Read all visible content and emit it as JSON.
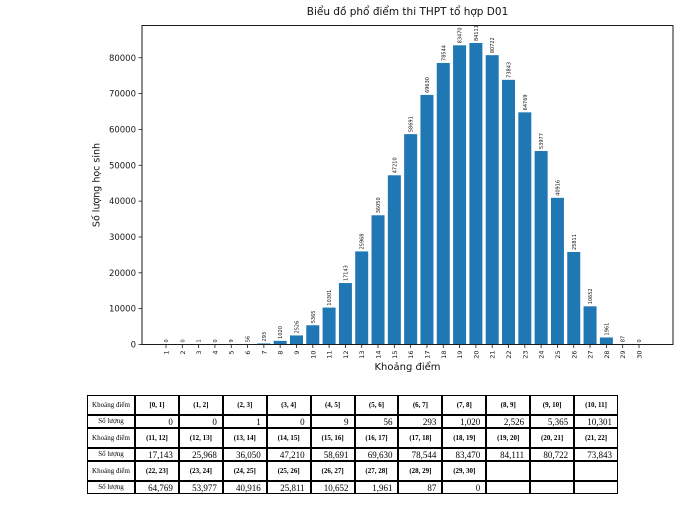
{
  "chart_data": {
    "type": "bar",
    "title": "Biểu đồ phổ điểm thi THPT tổ hợp D01",
    "xlabel": "Khoảng điểm",
    "ylabel": "Số lượng học sinh",
    "bar_color": "#1f77b4",
    "axis_color": "#1a1a1a",
    "x": [
      1,
      2,
      3,
      4,
      5,
      6,
      7,
      8,
      9,
      10,
      11,
      12,
      13,
      14,
      15,
      16,
      17,
      18,
      19,
      20,
      21,
      22,
      23,
      24,
      25,
      26,
      27,
      28,
      29,
      30
    ],
    "values": [
      0,
      0,
      1,
      0,
      9,
      56,
      293,
      1020,
      2526,
      5365,
      10301,
      17143,
      25968,
      36050,
      47210,
      58691,
      69630,
      78544,
      83470,
      84111,
      80722,
      73843,
      64769,
      53977,
      40916,
      25811,
      10652,
      1961,
      87,
      0
    ],
    "bar_labels": [
      "0",
      "0",
      "1",
      "0",
      "9",
      "56",
      "293",
      "1020",
      "2526",
      "5365",
      "10301",
      "17143",
      "25968",
      "36050",
      "47210",
      "58691",
      "69630",
      "78544",
      "83470",
      "84111",
      "80722",
      "73843",
      "64769",
      "53977",
      "40916",
      "25811",
      "10652",
      "1961",
      "87",
      "0"
    ],
    "y_ticks": [
      0,
      10000,
      20000,
      30000,
      40000,
      50000,
      60000,
      70000,
      80000
    ],
    "ylim": [
      0,
      89000
    ],
    "grid": false,
    "legend": null
  },
  "table": {
    "rows": [
      {
        "header": "Khoảng điểm",
        "type": "range",
        "cells": [
          "[0, 1]",
          "(1, 2]",
          "(2, 3]",
          "(3, 4]",
          "(4, 5]",
          "(5, 6]",
          "(6, 7]",
          "(7, 8]",
          "(8, 9]",
          "(9, 10]",
          "(10, 11]"
        ]
      },
      {
        "header": "Số lượng",
        "type": "count",
        "cells": [
          "0",
          "0",
          "1",
          "0",
          "9",
          "56",
          "293",
          "1,020",
          "2,526",
          "5,365",
          "10,301"
        ]
      },
      {
        "header": "Khoảng điểm",
        "type": "range",
        "cells": [
          "(11, 12]",
          "(12, 13]",
          "(13, 14]",
          "(14, 15]",
          "(15, 16]",
          "(16, 17]",
          "(17, 18]",
          "(18, 19]",
          "(19, 20]",
          "(20, 21]",
          "(21, 22]"
        ]
      },
      {
        "header": "Số lượng",
        "type": "count",
        "cells": [
          "17,143",
          "25,968",
          "36,050",
          "47,210",
          "58,691",
          "69,630",
          "78,544",
          "83,470",
          "84,111",
          "80,722",
          "73,843"
        ]
      },
      {
        "header": "Khoảng điểm",
        "type": "range",
        "cells": [
          "(22, 23]",
          "(23, 24]",
          "(24, 25]",
          "(25, 26]",
          "(26, 27]",
          "(27, 28]",
          "(28, 29]",
          "(29, 30]",
          "",
          "",
          ""
        ]
      },
      {
        "header": "Số lượng",
        "type": "count",
        "cells": [
          "64,769",
          "53,977",
          "40,916",
          "25,811",
          "10,652",
          "1,961",
          "87",
          "0",
          "",
          "",
          ""
        ]
      }
    ]
  }
}
